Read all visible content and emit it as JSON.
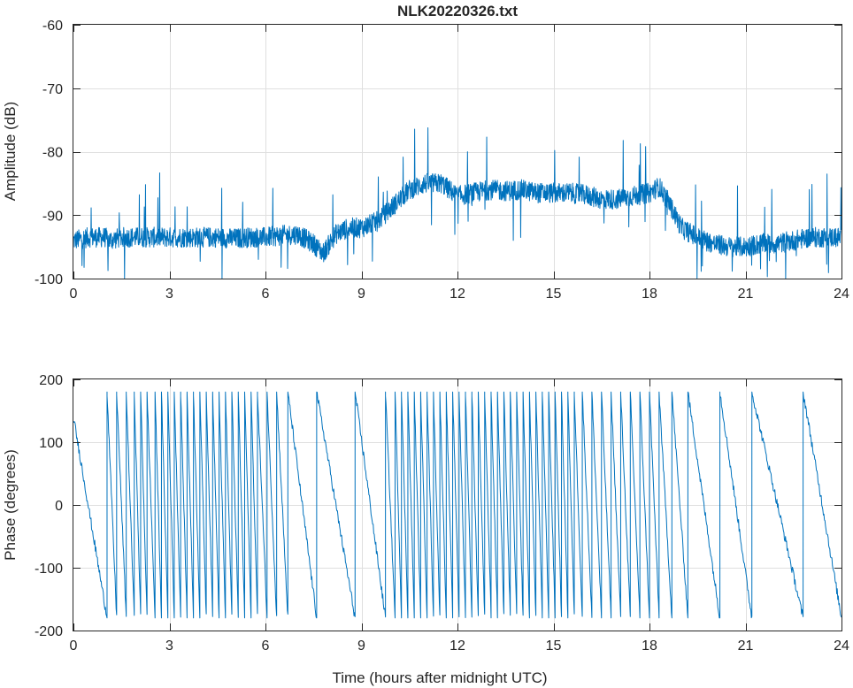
{
  "chart_data": [
    {
      "type": "line",
      "title": "NLK20220326.txt",
      "xlabel": "",
      "ylabel": "Amplitude (dB)",
      "xlim": [
        0,
        24
      ],
      "ylim": [
        -100,
        -60
      ],
      "xticks": [
        0,
        3,
        6,
        9,
        12,
        15,
        18,
        21,
        24
      ],
      "yticks": [
        -100,
        -90,
        -80,
        -70,
        -60
      ],
      "grid": true,
      "color": "#0072bd",
      "series": [
        {
          "x": [
            0,
            0.5,
            1.0,
            1.1,
            1.5,
            2.0,
            2.5,
            3.0,
            3.5,
            4.0,
            4.5,
            5.0,
            5.5,
            6.0,
            6.5,
            7.0,
            7.5,
            7.8,
            8.2,
            8.6,
            9.0,
            9.5,
            10.0,
            10.5,
            11.0,
            11.5,
            12.0,
            12.5,
            13.0,
            13.5,
            14.0,
            14.5,
            15.0,
            15.5,
            16.0,
            16.5,
            17.0,
            17.5,
            18.0,
            18.3,
            18.6,
            19.0,
            19.5,
            20.0,
            20.5,
            21.0,
            21.5,
            22.0,
            22.5,
            23.0,
            23.5,
            24.0
          ],
          "values": [
            -94,
            -93.5,
            -93.5,
            -94,
            -93.5,
            -93.5,
            -93.5,
            -93.5,
            -93.5,
            -93.5,
            -93.5,
            -93.7,
            -93.5,
            -93.5,
            -93.2,
            -93.0,
            -94.5,
            -96.0,
            -93.0,
            -92.0,
            -92.0,
            -91.0,
            -88.5,
            -86.0,
            -85.0,
            -85.0,
            -87.0,
            -86.5,
            -86.0,
            -86.2,
            -86.0,
            -86.5,
            -86.5,
            -86.5,
            -86.8,
            -87.5,
            -87.5,
            -87.0,
            -86.5,
            -85.5,
            -88.0,
            -92.0,
            -93.5,
            -94.5,
            -95.0,
            -95.0,
            -94.5,
            -94.5,
            -94.0,
            -93.5,
            -93.5,
            -93.5
          ]
        }
      ]
    },
    {
      "type": "line",
      "title": "",
      "xlabel": "Time (hours after midnight UTC)",
      "ylabel": "Phase (degrees)",
      "xlim": [
        0,
        24
      ],
      "ylim": [
        -200,
        200
      ],
      "xticks": [
        0,
        3,
        6,
        9,
        12,
        15,
        18,
        21,
        24
      ],
      "yticks": [
        -200,
        -100,
        0,
        100,
        200
      ],
      "grid": true,
      "color": "#0072bd",
      "series": [
        {
          "wrap_times": [
            0.0,
            1.05,
            1.35,
            1.65,
            1.9,
            2.1,
            2.3,
            2.55,
            2.75,
            2.95,
            3.15,
            3.35,
            3.55,
            3.75,
            3.95,
            4.15,
            4.35,
            4.55,
            4.75,
            4.95,
            5.15,
            5.35,
            5.55,
            5.75,
            6.05,
            6.35,
            6.7,
            7.6,
            8.8,
            9.75,
            10.05,
            10.25,
            10.45,
            10.65,
            10.85,
            11.05,
            11.25,
            11.45,
            11.65,
            11.85,
            12.05,
            12.25,
            12.45,
            12.65,
            12.85,
            13.05,
            13.25,
            13.45,
            13.65,
            13.85,
            14.05,
            14.25,
            14.45,
            14.65,
            14.85,
            15.05,
            15.25,
            15.45,
            15.65,
            15.9,
            16.2,
            16.5,
            16.8,
            17.1,
            17.4,
            17.7,
            18.0,
            18.3,
            18.7,
            19.2,
            20.2,
            21.2,
            22.8,
            24.0
          ],
          "start_phase": 140,
          "end_phase": -180,
          "wrap_range": [
            -180,
            180
          ]
        }
      ]
    }
  ]
}
